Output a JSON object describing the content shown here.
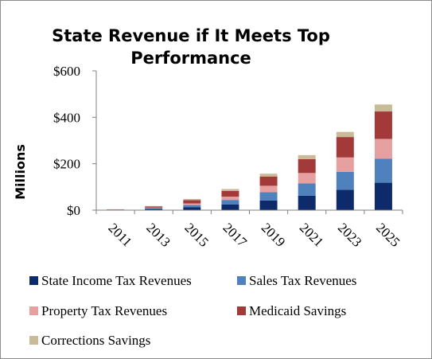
{
  "chart_data": {
    "type": "bar",
    "stacked": true,
    "title": "State Revenue if It Meets Top Performance",
    "title_lines": [
      "State Revenue if It Meets Top",
      "Performance"
    ],
    "xlabel": "",
    "ylabel": "Millions",
    "ylim": [
      0,
      600
    ],
    "yticks": [
      0,
      200,
      400,
      600
    ],
    "ytick_labels": [
      "$0",
      "$200",
      "$400",
      "$600"
    ],
    "categories": [
      "2011",
      "2013",
      "2015",
      "2017",
      "2019",
      "2021",
      "2023",
      "2025"
    ],
    "grid": false,
    "legend_position": "bottom",
    "series": [
      {
        "name": "State Income Tax Revenues",
        "color": "#0d2a6b",
        "values": [
          1,
          5,
          12,
          25,
          42,
          62,
          88,
          118
        ]
      },
      {
        "name": "Sales Tax Revenues",
        "color": "#4f81bd",
        "values": [
          1,
          4,
          10,
          19,
          35,
          53,
          77,
          104
        ]
      },
      {
        "name": "Property Tax Revenues",
        "color": "#e6a0a0",
        "values": [
          0.5,
          2,
          7,
          14,
          28,
          45,
          62,
          85
        ]
      },
      {
        "name": "Medicaid Savings",
        "color": "#a33a3a",
        "values": [
          1,
          5,
          14,
          25,
          40,
          60,
          88,
          118
        ]
      },
      {
        "name": "Corrections Savings",
        "color": "#c9bb98",
        "values": [
          0.5,
          2,
          5,
          8,
          12,
          17,
          22,
          30
        ]
      }
    ]
  }
}
